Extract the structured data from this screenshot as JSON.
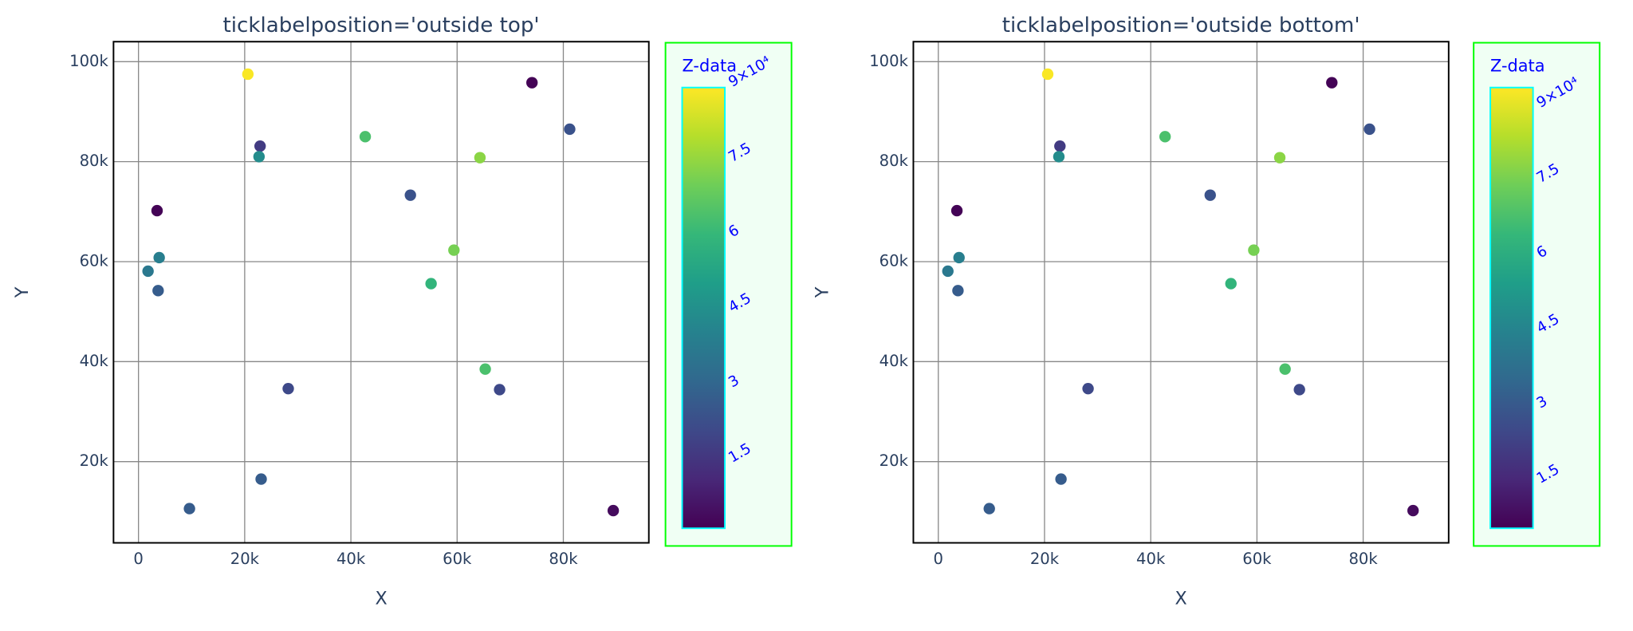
{
  "chart_data": [
    {
      "type": "scatter",
      "title": "ticklabelposition='outside top'",
      "x_label": "X",
      "y_label": "Y",
      "x": [
        20600,
        74100,
        81200,
        22900,
        22700,
        42700,
        64300,
        51200,
        3500,
        3900,
        1800,
        3700,
        59400,
        55100,
        28200,
        65300,
        68000,
        23100,
        9600,
        89400
      ],
      "y": [
        97500,
        95800,
        86500,
        83100,
        81000,
        85000,
        80800,
        73300,
        70200,
        60800,
        58100,
        54200,
        62300,
        55600,
        34600,
        38500,
        34400,
        16500,
        10600,
        10200
      ],
      "z": [
        90000,
        3000,
        25000,
        18000,
        45000,
        65000,
        75000,
        25000,
        3000,
        40000,
        38000,
        28000,
        72000,
        60000,
        22000,
        65000,
        22000,
        28000,
        28000,
        5000
      ],
      "xlim": [
        -4700,
        96100
      ],
      "ylim": [
        3750,
        104000
      ],
      "xticks": [
        {
          "value": 0,
          "label": "0"
        },
        {
          "value": 20000,
          "label": "20k"
        },
        {
          "value": 40000,
          "label": "40k"
        },
        {
          "value": 60000,
          "label": "60k"
        },
        {
          "value": 80000,
          "label": "80k"
        }
      ],
      "yticks": [
        {
          "value": 20000,
          "label": "20k"
        },
        {
          "value": 40000,
          "label": "40k"
        },
        {
          "value": 60000,
          "label": "60k"
        },
        {
          "value": 80000,
          "label": "80k"
        },
        {
          "value": 100000,
          "label": "100k"
        }
      ],
      "grid": true,
      "colorbar_title": "Z-data",
      "clim": [
        2500,
        90500
      ],
      "cticks": [
        {
          "value": 15000,
          "label": "1.5"
        },
        {
          "value": 30000,
          "label": "3"
        },
        {
          "value": 45000,
          "label": "4.5"
        },
        {
          "value": 60000,
          "label": "6"
        },
        {
          "value": 75000,
          "label": "7.5"
        },
        {
          "value": 90000,
          "label": "9×10⁴"
        }
      ],
      "ticklabelposition": "outside top",
      "colorscale": [
        "#440154",
        "#482878",
        "#3e4989",
        "#31688e",
        "#26828e",
        "#1f9e89",
        "#35b779",
        "#6ece58",
        "#b5de2b",
        "#fde725"
      ]
    },
    {
      "type": "scatter",
      "title": "ticklabelposition='outside bottom'",
      "x_label": "X",
      "y_label": "Y",
      "x": [
        20600,
        74100,
        81200,
        22900,
        22700,
        42700,
        64300,
        51200,
        3500,
        3900,
        1800,
        3700,
        59400,
        55100,
        28200,
        65300,
        68000,
        23100,
        9600,
        89400
      ],
      "y": [
        97500,
        95800,
        86500,
        83100,
        81000,
        85000,
        80800,
        73300,
        70200,
        60800,
        58100,
        54200,
        62300,
        55600,
        34600,
        38500,
        34400,
        16500,
        10600,
        10200
      ],
      "z": [
        90000,
        3000,
        25000,
        18000,
        45000,
        65000,
        75000,
        25000,
        3000,
        40000,
        38000,
        28000,
        72000,
        60000,
        22000,
        65000,
        22000,
        28000,
        28000,
        5000
      ],
      "xlim": [
        -4700,
        96100
      ],
      "ylim": [
        3750,
        104000
      ],
      "xticks": [
        {
          "value": 0,
          "label": "0"
        },
        {
          "value": 20000,
          "label": "20k"
        },
        {
          "value": 40000,
          "label": "40k"
        },
        {
          "value": 60000,
          "label": "60k"
        },
        {
          "value": 80000,
          "label": "80k"
        }
      ],
      "yticks": [
        {
          "value": 20000,
          "label": "20k"
        },
        {
          "value": 40000,
          "label": "40k"
        },
        {
          "value": 60000,
          "label": "60k"
        },
        {
          "value": 80000,
          "label": "80k"
        },
        {
          "value": 100000,
          "label": "100k"
        }
      ],
      "grid": true,
      "colorbar_title": "Z-data",
      "clim": [
        2500,
        90500
      ],
      "cticks": [
        {
          "value": 15000,
          "label": "1.5"
        },
        {
          "value": 30000,
          "label": "3"
        },
        {
          "value": 45000,
          "label": "4.5"
        },
        {
          "value": 60000,
          "label": "6"
        },
        {
          "value": 75000,
          "label": "7.5"
        },
        {
          "value": 90000,
          "label": "9×10⁴"
        }
      ],
      "ticklabelposition": "outside bottom",
      "colorscale": [
        "#440154",
        "#482878",
        "#3e4989",
        "#31688e",
        "#26828e",
        "#1f9e89",
        "#35b779",
        "#6ece58",
        "#b5de2b",
        "#fde725"
      ]
    }
  ]
}
